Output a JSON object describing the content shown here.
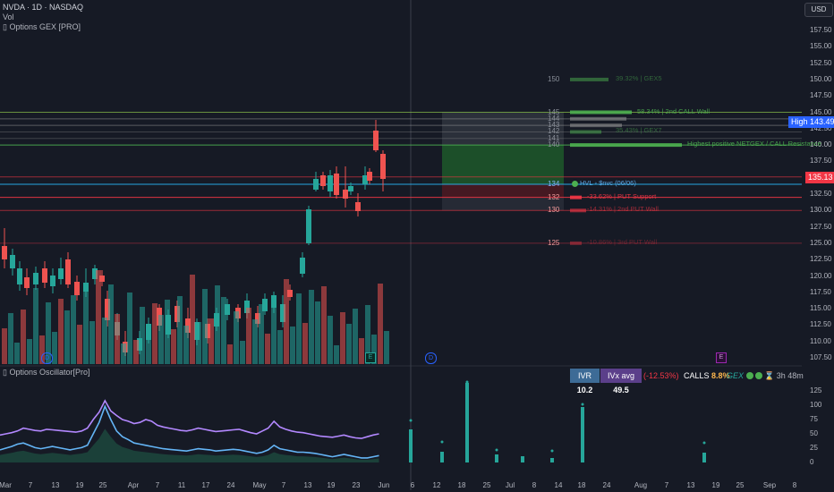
{
  "header": {
    "symbol_line": "NVDA · 1D · NASDAQ",
    "vol_label": "Vol",
    "indicator_label": "Options GEX [PRO]"
  },
  "currency_button": "USD",
  "price_axis": {
    "ticks": [
      "157.50",
      "155.00",
      "152.50",
      "150.00",
      "147.50",
      "145.00",
      "142.50",
      "140.00",
      "137.50",
      "135.00",
      "132.50",
      "130.00",
      "127.50",
      "125.00",
      "122.50",
      "120.00",
      "117.50",
      "115.00",
      "112.50",
      "110.00",
      "107.50"
    ],
    "high_tag": {
      "label": "High",
      "value": "143.49"
    },
    "last_price_tag": "135.13"
  },
  "gex_levels": [
    {
      "strike": "150",
      "label": "39.32% | GEX5"
    },
    {
      "strike": "145",
      "label": "58.34% | 2nd CALL Wall"
    },
    {
      "strike": "144",
      "label": ""
    },
    {
      "strike": "143",
      "label": ""
    },
    {
      "strike": "142",
      "label": "35.43% | GEX7"
    },
    {
      "strike": "141",
      "label": ""
    },
    {
      "strike": "140",
      "label": "Highest positive NETGEX / CALL Resistance"
    },
    {
      "strike": "134",
      "label": "HVL ◦ $nvc (06/06)"
    },
    {
      "strike": "132",
      "label": "-33.62% | PUT Support"
    },
    {
      "strike": "130",
      "label": "-14.31% | 2nd PUT Wall"
    },
    {
      "strike": "125",
      "label": "-10.86% | 3rd PUT Wall"
    }
  ],
  "oscillator": {
    "title": "Options Oscillator[Pro]",
    "ivr_label": "IVR",
    "ivr_value": "10.2",
    "ivx_label": "IVx avg",
    "ivx_value": "49.5",
    "change": "(-12.53%)",
    "calls_label": "CALLS",
    "calls_value": "8.8%",
    "gex_label": "GEX",
    "timer": "3h 48m",
    "axis_ticks": [
      "125",
      "100",
      "75",
      "50",
      "25",
      "0"
    ]
  },
  "time_axis": [
    "Mar",
    "7",
    "13",
    "19",
    "25",
    "Apr",
    "7",
    "11",
    "17",
    "24",
    "May",
    "7",
    "13",
    "19",
    "23",
    "Jun",
    "6",
    "12",
    "18",
    "25",
    "Jul",
    "8",
    "14",
    "18",
    "24",
    "Aug",
    "7",
    "13",
    "19",
    "25",
    "Sep",
    "8"
  ],
  "event_markers": [
    "D",
    "E",
    "E"
  ],
  "colors": {
    "background": "#161a25",
    "up": "#26a69a",
    "down": "#ef5350",
    "call_green": "#4caf50",
    "put_red": "#f23645",
    "ivr_bg": "#3d6b96",
    "ivx_bg": "#5b3f8a",
    "high_tag": "#2962ff"
  }
}
